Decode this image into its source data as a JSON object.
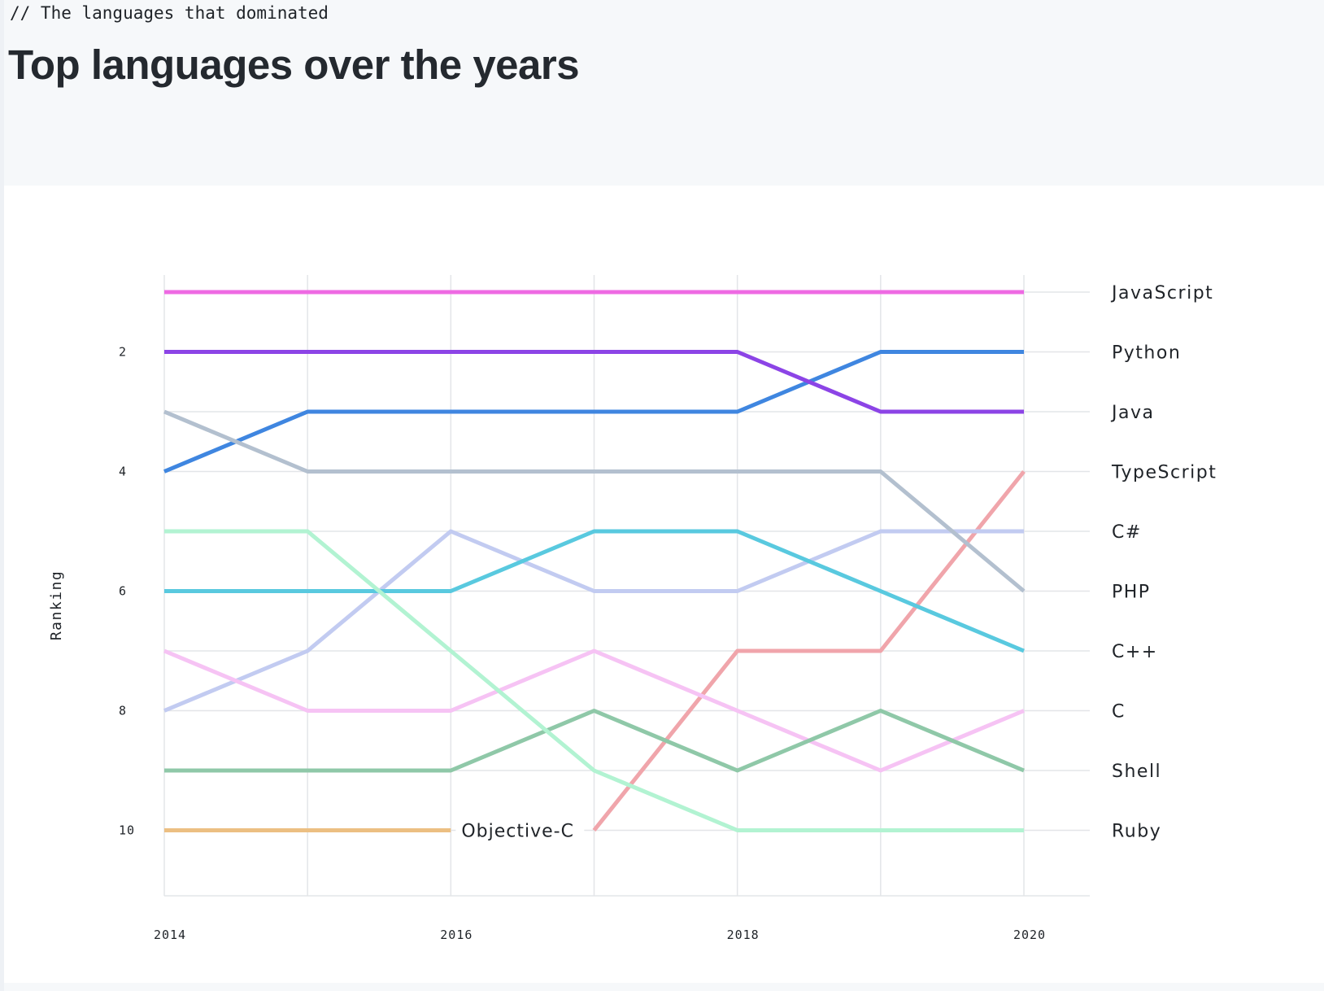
{
  "header": {
    "eyebrow": "// The languages that dominated",
    "title": "Top languages over the years"
  },
  "chart_data": {
    "type": "line",
    "title": "",
    "xlabel": "",
    "ylabel": "Ranking",
    "x": [
      2014,
      2015,
      2016,
      2017,
      2018,
      2019,
      2020
    ],
    "x_tick_labels": [
      "2014",
      "2016",
      "2018",
      "2020"
    ],
    "y_tick_labels": [
      "2",
      "4",
      "6",
      "8",
      "10"
    ],
    "ylim": [
      1,
      11
    ],
    "y_inverted": true,
    "grid": true,
    "series": [
      {
        "name": "JavaScript",
        "color": "#ee6ae3",
        "x": [
          2014,
          2015,
          2016,
          2017,
          2018,
          2019,
          2020
        ],
        "values": [
          1,
          1,
          1,
          1,
          1,
          1,
          1
        ]
      },
      {
        "name": "Python",
        "color": "#3f86e0",
        "x": [
          2014,
          2015,
          2016,
          2017,
          2018,
          2019,
          2020
        ],
        "values": [
          4,
          3,
          3,
          3,
          3,
          2,
          2
        ]
      },
      {
        "name": "Java",
        "color": "#8c44e6",
        "x": [
          2014,
          2015,
          2016,
          2017,
          2018,
          2019,
          2020
        ],
        "values": [
          2,
          2,
          2,
          2,
          2,
          3,
          3
        ]
      },
      {
        "name": "TypeScript",
        "color": "#f0a5ab",
        "x": [
          2017,
          2018,
          2019,
          2020
        ],
        "values": [
          10,
          7,
          7,
          4
        ]
      },
      {
        "name": "C#",
        "color": "#c2cbf1",
        "x": [
          2014,
          2015,
          2016,
          2017,
          2018,
          2019,
          2020
        ],
        "values": [
          8,
          7,
          5,
          6,
          6,
          5,
          5
        ]
      },
      {
        "name": "PHP",
        "color": "#b3c0cf",
        "x": [
          2014,
          2015,
          2016,
          2017,
          2018,
          2019,
          2020
        ],
        "values": [
          3,
          4,
          4,
          4,
          4,
          4,
          6
        ]
      },
      {
        "name": "C++",
        "color": "#59c9df",
        "x": [
          2014,
          2015,
          2016,
          2017,
          2018,
          2019,
          2020
        ],
        "values": [
          6,
          6,
          6,
          5,
          5,
          6,
          7
        ]
      },
      {
        "name": "C",
        "color": "#f6c3f4",
        "x": [
          2014,
          2015,
          2016,
          2017,
          2018,
          2019,
          2020
        ],
        "values": [
          7,
          8,
          8,
          7,
          8,
          9,
          8
        ]
      },
      {
        "name": "Shell",
        "color": "#8fc8a8",
        "x": [
          2014,
          2015,
          2016,
          2017,
          2018,
          2019,
          2020
        ],
        "values": [
          9,
          9,
          9,
          8,
          9,
          8,
          9
        ]
      },
      {
        "name": "Ruby",
        "color": "#b2f3d2",
        "x": [
          2014,
          2015,
          2016,
          2017,
          2018,
          2019,
          2020
        ],
        "values": [
          5,
          5,
          7,
          9,
          10,
          10,
          10
        ]
      },
      {
        "name": "Objective-C",
        "color": "#ecbf82",
        "x": [
          2014,
          2015,
          2016
        ],
        "values": [
          10,
          10,
          10
        ]
      }
    ],
    "right_labels": [
      {
        "text": "JavaScript",
        "rank": 1
      },
      {
        "text": "Python",
        "rank": 2
      },
      {
        "text": "Java",
        "rank": 3
      },
      {
        "text": "TypeScript",
        "rank": 4
      },
      {
        "text": "C#",
        "rank": 5
      },
      {
        "text": "PHP",
        "rank": 6
      },
      {
        "text": "C++",
        "rank": 7
      },
      {
        "text": "C",
        "rank": 8
      },
      {
        "text": "Shell",
        "rank": 9
      },
      {
        "text": "Ruby",
        "rank": 10
      }
    ],
    "inline_labels": [
      {
        "text": "Objective-C",
        "x": 2016,
        "rank": 10
      }
    ]
  }
}
